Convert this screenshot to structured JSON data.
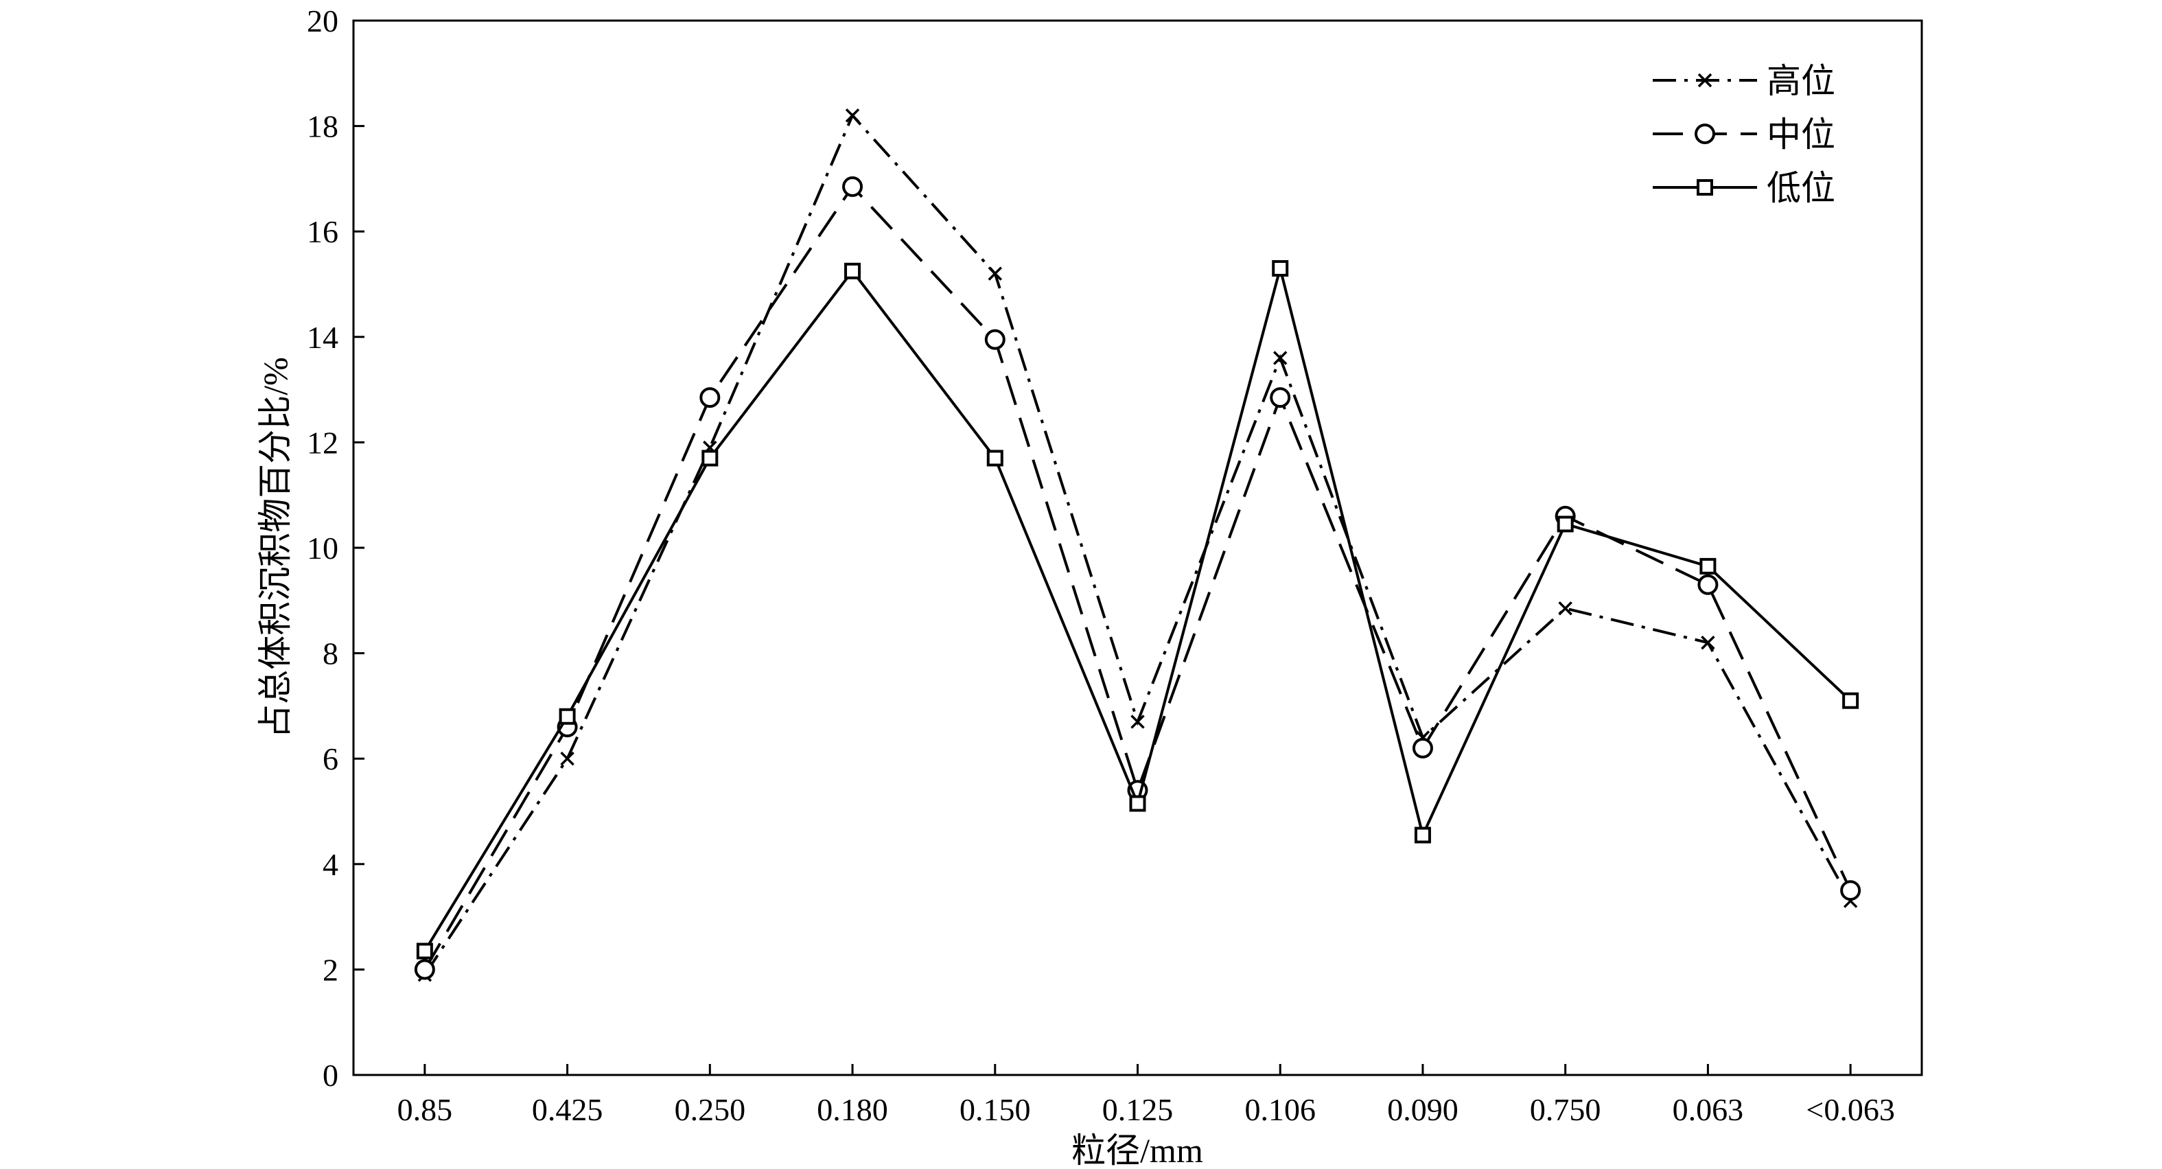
{
  "chart_data": {
    "type": "line",
    "xlabel": "粒径/mm",
    "ylabel": "占总体积沉积物百分比/%",
    "categories": [
      "0.85",
      "0.425",
      "0.250",
      "0.180",
      "0.150",
      "0.125",
      "0.106",
      "0.090",
      "0.750",
      "0.063",
      "<0.063"
    ],
    "ylim": [
      0,
      20
    ],
    "yticks": [
      0,
      2,
      4,
      6,
      8,
      10,
      12,
      14,
      16,
      18,
      20
    ],
    "grid": false,
    "legend_position": "top-right",
    "series": [
      {
        "name": "高位",
        "line_style": "dash-dot",
        "marker": "x-mark",
        "color": "#000000",
        "values": [
          1.9,
          6.0,
          11.9,
          18.2,
          15.2,
          6.7,
          13.6,
          6.4,
          8.85,
          8.2,
          3.3
        ]
      },
      {
        "name": "中位",
        "line_style": "dashed",
        "marker": "circle",
        "color": "#000000",
        "values": [
          2.0,
          6.6,
          12.85,
          16.85,
          13.95,
          5.4,
          12.85,
          6.2,
          10.6,
          9.3,
          3.5
        ]
      },
      {
        "name": "低位",
        "line_style": "solid",
        "marker": "square",
        "color": "#000000",
        "values": [
          2.35,
          6.8,
          11.7,
          15.25,
          11.7,
          5.15,
          15.3,
          4.55,
          10.45,
          9.65,
          7.1
        ]
      }
    ]
  }
}
